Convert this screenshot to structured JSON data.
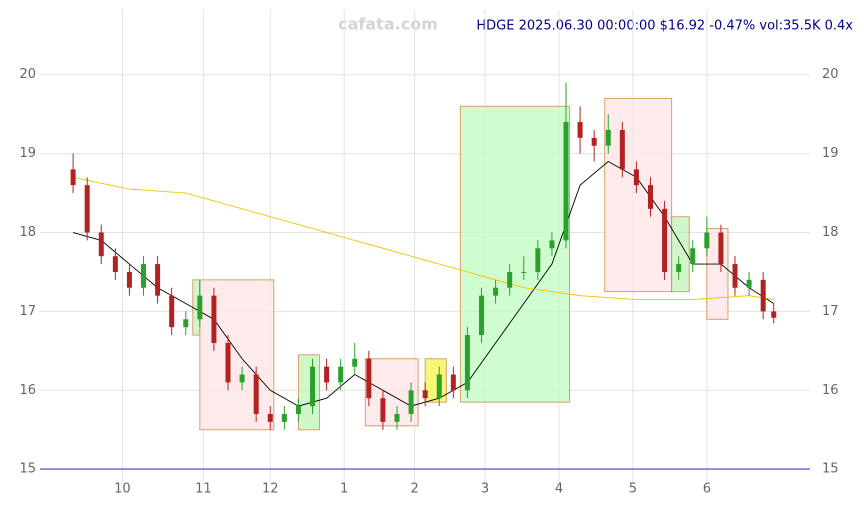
{
  "chart_data": {
    "type": "candlestick",
    "title": "HDGE 2025.06.30 00:00:00 $16.92 -0.47% vol:35.5K 0.4x",
    "watermark": "cafata.com",
    "xlim": [
      -9.4,
      209.3
    ],
    "ylim": [
      14.8,
      20.82
    ],
    "yticks": [
      15,
      16,
      17,
      18,
      19,
      20
    ],
    "xticks": [
      {
        "value": 14,
        "label": "10"
      },
      {
        "value": 37,
        "label": "11"
      },
      {
        "value": 56,
        "label": "12"
      },
      {
        "value": 77,
        "label": "1"
      },
      {
        "value": 97,
        "label": "2"
      },
      {
        "value": 117,
        "label": "3"
      },
      {
        "value": 138,
        "label": "4"
      },
      {
        "value": 159,
        "label": "5"
      },
      {
        "value": 180,
        "label": "6"
      }
    ],
    "grid": true,
    "up_color": "#2ca02c",
    "down_color": "#b22222",
    "x": [
      0,
      4,
      8,
      12,
      16,
      20,
      24,
      28,
      32,
      36,
      40,
      44,
      48,
      52,
      56,
      60,
      64,
      68,
      72,
      76,
      80,
      84,
      88,
      92,
      96,
      100,
      104,
      108,
      112,
      116,
      120,
      124,
      128,
      132,
      136,
      140,
      144,
      148,
      152,
      156,
      160,
      164,
      168,
      172,
      176,
      180,
      184,
      188,
      192,
      196,
      199
    ],
    "open": [
      18.8,
      18.6,
      18.0,
      17.7,
      17.5,
      17.3,
      17.6,
      17.2,
      16.8,
      16.9,
      17.2,
      16.6,
      16.1,
      16.2,
      15.7,
      15.6,
      15.7,
      15.8,
      16.3,
      16.1,
      16.3,
      16.4,
      15.9,
      15.6,
      15.7,
      16.0,
      15.9,
      16.2,
      16.0,
      16.7,
      17.2,
      17.3,
      17.5,
      17.5,
      17.8,
      17.9,
      19.4,
      19.2,
      19.1,
      19.3,
      18.8,
      18.6,
      18.3,
      17.5,
      17.6,
      17.8,
      18.0,
      17.6,
      17.3,
      17.4,
      17.0
    ],
    "high": [
      19.0,
      18.7,
      18.1,
      17.8,
      17.6,
      17.7,
      17.7,
      17.3,
      17.0,
      17.4,
      17.3,
      16.7,
      16.3,
      16.3,
      15.8,
      15.8,
      15.9,
      16.4,
      16.4,
      16.4,
      16.6,
      16.5,
      16.0,
      15.8,
      16.1,
      16.1,
      16.3,
      16.3,
      16.8,
      17.3,
      17.4,
      17.6,
      17.7,
      17.9,
      18.0,
      19.9,
      19.6,
      19.3,
      19.5,
      19.4,
      18.9,
      18.7,
      18.4,
      17.7,
      17.9,
      18.2,
      18.1,
      17.7,
      17.5,
      17.5,
      17.1
    ],
    "low": [
      18.5,
      17.9,
      17.6,
      17.4,
      17.2,
      17.2,
      17.1,
      16.7,
      16.7,
      16.8,
      16.5,
      16.0,
      16.0,
      15.6,
      15.5,
      15.5,
      15.6,
      15.7,
      16.0,
      16.0,
      16.2,
      15.8,
      15.5,
      15.5,
      15.6,
      15.8,
      15.8,
      15.9,
      15.9,
      16.6,
      17.1,
      17.2,
      17.4,
      17.4,
      17.7,
      17.8,
      19.0,
      18.9,
      19.0,
      18.7,
      18.5,
      18.2,
      17.4,
      17.4,
      17.5,
      17.7,
      17.5,
      17.2,
      17.2,
      16.9,
      16.85
    ],
    "close": [
      18.6,
      18.0,
      17.7,
      17.5,
      17.3,
      17.6,
      17.2,
      16.8,
      16.9,
      17.2,
      16.6,
      16.1,
      16.2,
      15.7,
      15.6,
      15.7,
      15.8,
      16.3,
      16.1,
      16.3,
      16.4,
      15.9,
      15.6,
      15.7,
      16.0,
      15.9,
      16.2,
      16.0,
      16.7,
      17.2,
      17.3,
      17.5,
      17.5,
      17.8,
      17.9,
      19.4,
      19.2,
      19.1,
      19.3,
      18.8,
      18.6,
      18.3,
      17.5,
      17.6,
      17.8,
      18.0,
      17.6,
      17.3,
      17.4,
      17.0,
      16.92
    ],
    "lines": [
      {
        "color": "#000000",
        "x": [
          0,
          8,
          16,
          24,
          32,
          40,
          48,
          56,
          64,
          72,
          80,
          88,
          96,
          104,
          112,
          120,
          128,
          136,
          144,
          152,
          160,
          168,
          176,
          184,
          192,
          199
        ],
        "values": [
          18.0,
          17.9,
          17.6,
          17.3,
          17.1,
          16.9,
          16.4,
          16.0,
          15.8,
          15.9,
          16.2,
          16.0,
          15.8,
          15.9,
          16.1,
          16.6,
          17.1,
          17.6,
          18.6,
          18.9,
          18.7,
          18.2,
          17.6,
          17.6,
          17.3,
          17.1
        ]
      },
      {
        "color": "#f5c400",
        "x": [
          0,
          16,
          32,
          48,
          64,
          80,
          96,
          112,
          128,
          144,
          160,
          176,
          192,
          199
        ],
        "values": [
          18.7,
          18.55,
          18.5,
          18.3,
          18.1,
          17.9,
          17.7,
          17.5,
          17.3,
          17.2,
          17.15,
          17.15,
          17.2,
          17.15
        ]
      }
    ],
    "zones": [
      {
        "x": [
          34,
          36
        ],
        "y": [
          16.7,
          17.4
        ],
        "color": "#c8f5c0"
      },
      {
        "x": [
          36,
          57
        ],
        "y": [
          15.5,
          17.4
        ],
        "color": "#fde8e8"
      },
      {
        "x": [
          64,
          70
        ],
        "y": [
          15.5,
          16.45
        ],
        "color": "#c8f5c0"
      },
      {
        "x": [
          83,
          98
        ],
        "y": [
          15.55,
          16.4
        ],
        "color": "#fde8e8"
      },
      {
        "x": [
          100,
          106
        ],
        "y": [
          15.85,
          16.4
        ],
        "color": "#f5f560"
      },
      {
        "x": [
          110,
          141
        ],
        "y": [
          15.85,
          19.6
        ],
        "color": "#c8fdc8"
      },
      {
        "x": [
          151,
          170
        ],
        "y": [
          17.25,
          19.7
        ],
        "color": "#fde8e8"
      },
      {
        "x": [
          170,
          175
        ],
        "y": [
          17.25,
          18.2
        ],
        "color": "#c8f5c0"
      },
      {
        "x": [
          180,
          186
        ],
        "y": [
          16.9,
          18.05
        ],
        "color": "#fde8e8"
      }
    ]
  }
}
